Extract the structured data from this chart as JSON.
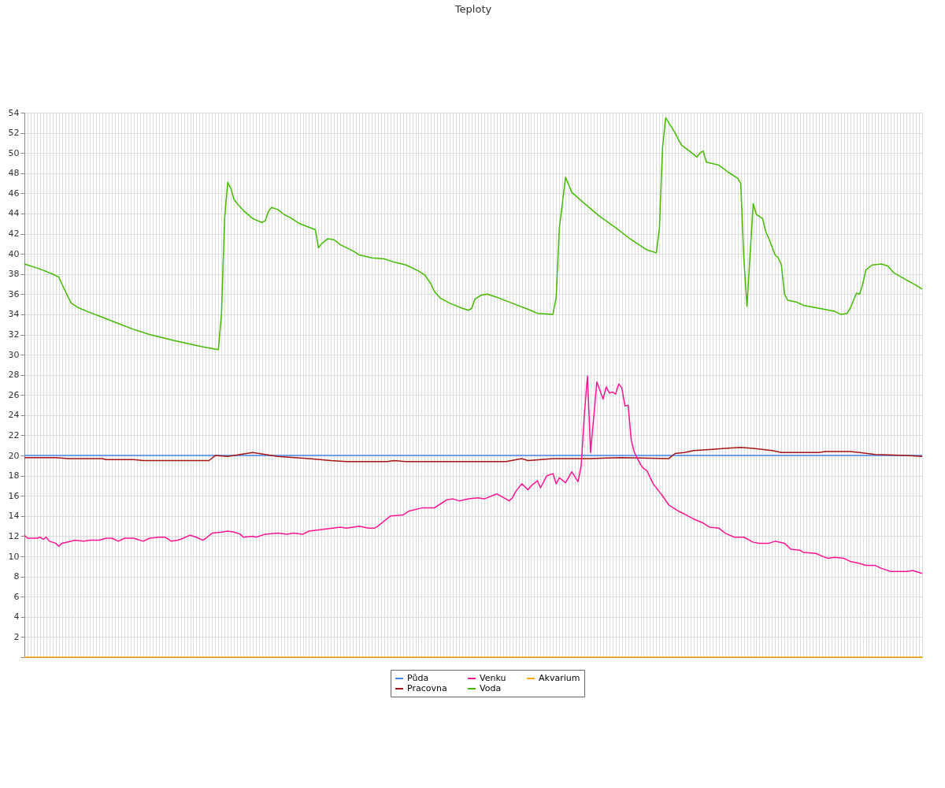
{
  "chart_data": {
    "type": "line",
    "title": "Teploty",
    "ylim": [
      0,
      54
    ],
    "yticks": [
      {
        "value": 0,
        "label": null
      },
      2,
      4,
      6,
      8,
      10,
      12,
      14,
      16,
      18,
      20,
      22,
      24,
      26,
      28,
      30,
      32,
      34,
      36,
      38,
      40,
      42,
      44,
      46,
      48,
      50,
      52,
      54
    ],
    "tick_labels": "y",
    "grid": true,
    "legend": "bottom",
    "marker": "none",
    "line_style": "solid",
    "categories": [
      null,
      null,
      null,
      null,
      null,
      null,
      null,
      null,
      null,
      null,
      null,
      null,
      null,
      null,
      null,
      null,
      null,
      null,
      null,
      null,
      null,
      null,
      null,
      null,
      null,
      null,
      null,
      null,
      null,
      null,
      null,
      null,
      null,
      null,
      null,
      null,
      null,
      null,
      null,
      null,
      null,
      null,
      null,
      null,
      null,
      null,
      null,
      null,
      null,
      null,
      null,
      null,
      null,
      null,
      null,
      null,
      null,
      null,
      null,
      null,
      null,
      null,
      null,
      null,
      null,
      null,
      null,
      null,
      null,
      null,
      null,
      null,
      null,
      null,
      null,
      null,
      null,
      null,
      null,
      null,
      null,
      null,
      null,
      null,
      null,
      null,
      null,
      null,
      null,
      null,
      null,
      null,
      null,
      null,
      null,
      null,
      null,
      null,
      null,
      null,
      null,
      null,
      null,
      null,
      null,
      null,
      null,
      null,
      null,
      null,
      null,
      null,
      null,
      null,
      null,
      null,
      null,
      null,
      null,
      null,
      null,
      null,
      null,
      null,
      null,
      null,
      null,
      null,
      null,
      null,
      null,
      null,
      null,
      null,
      null,
      null,
      null,
      null,
      null,
      null,
      null,
      null,
      null,
      null,
      null,
      null,
      null,
      null,
      null,
      null,
      null,
      null,
      null,
      null,
      null,
      null,
      null,
      null,
      null,
      null,
      null,
      null,
      null,
      null,
      null,
      null,
      null,
      null,
      null,
      null,
      null,
      null,
      null,
      null,
      null,
      null,
      null,
      null,
      null,
      null,
      null,
      null,
      null,
      null,
      null,
      null,
      null,
      null,
      null,
      null,
      null,
      null,
      null,
      null,
      null,
      null,
      null,
      null,
      null,
      null,
      null,
      null,
      null,
      null,
      null,
      null,
      null,
      null,
      null,
      null,
      null,
      null,
      null,
      null,
      null,
      null,
      null,
      null,
      null,
      null,
      null,
      null,
      null,
      null,
      null,
      null,
      null,
      null,
      null,
      null,
      null,
      null,
      null,
      null,
      null,
      null,
      null,
      null,
      null,
      null,
      null,
      null,
      null,
      null,
      null,
      null,
      null,
      null,
      null,
      null,
      null,
      null,
      null,
      null,
      null,
      null,
      null,
      null,
      null,
      null,
      null,
      null,
      null,
      null,
      null,
      null,
      null,
      null,
      null,
      null,
      null,
      null,
      null,
      null,
      null,
      null,
      null,
      null,
      null,
      null,
      null,
      null,
      null,
      null,
      null,
      null,
      null,
      null
    ],
    "series": [
      {
        "name": "Půda",
        "color": "#4a86e8",
        "values": [
          20,
          null,
          null,
          null,
          null,
          null,
          null,
          null,
          null,
          null,
          null,
          null,
          null,
          null,
          null,
          null,
          null,
          null,
          null,
          null,
          null,
          null,
          null,
          null,
          null,
          null,
          null,
          null,
          null,
          null,
          null,
          null,
          null,
          null,
          null,
          null,
          null,
          null,
          null,
          null,
          null,
          null,
          null,
          null,
          null,
          null,
          null,
          null,
          null,
          null,
          null,
          null,
          null,
          null,
          null,
          null,
          null,
          null,
          null,
          null,
          null,
          null,
          null,
          null,
          null,
          null,
          null,
          null,
          null,
          null,
          null,
          null,
          null,
          null,
          null,
          null,
          null,
          null,
          null,
          null,
          null,
          null,
          null,
          null,
          null,
          null,
          null,
          null,
          null,
          null,
          null,
          null,
          null,
          null,
          null,
          null,
          null,
          null,
          null,
          null,
          null,
          null,
          null,
          null,
          null,
          null,
          null,
          null,
          null,
          null,
          null,
          null,
          null,
          null,
          null,
          null,
          null,
          null,
          null,
          null,
          null,
          null,
          null,
          null,
          null,
          null,
          null,
          null,
          null,
          null,
          null,
          null,
          null,
          null,
          null,
          null,
          null,
          null,
          null,
          null,
          null,
          null,
          null,
          null,
          null,
          null,
          null,
          null,
          null,
          null,
          null,
          null,
          null,
          null,
          null,
          null,
          null,
          null,
          null,
          null,
          null,
          null,
          null,
          null,
          null,
          null,
          null,
          null,
          null,
          null,
          null,
          null,
          null,
          null,
          null,
          null,
          null,
          null,
          null,
          null,
          null,
          null,
          null,
          null,
          null,
          null,
          null,
          null,
          null,
          null,
          null,
          null,
          null,
          null,
          null,
          null,
          null,
          null,
          null,
          null,
          null,
          null,
          null,
          null,
          null,
          null,
          null,
          null,
          null,
          null,
          null,
          null,
          null,
          null,
          null,
          null,
          null,
          null,
          null,
          null,
          null,
          null,
          null,
          null,
          null,
          null,
          null,
          null,
          null,
          null,
          null,
          null,
          null,
          null,
          null,
          null,
          null,
          null,
          null,
          null,
          null,
          null,
          null,
          null,
          null,
          null,
          null,
          null,
          null,
          null,
          null,
          null,
          null,
          null,
          null,
          null,
          null,
          null,
          null,
          null,
          null,
          null,
          null,
          null,
          null,
          null,
          null,
          null,
          null,
          null,
          null,
          null,
          null,
          null,
          null,
          null,
          null,
          null,
          null,
          null,
          null,
          null,
          null,
          null,
          null,
          null,
          null,
          20
        ]
      },
      {
        "name": "Pracovna",
        "color": "#a51515",
        "values": [
          19.8,
          null,
          null,
          null,
          null,
          null,
          null,
          null,
          null,
          null,
          19.8,
          null,
          null,
          null,
          19.7,
          null,
          null,
          null,
          null,
          null,
          null,
          null,
          null,
          null,
          null,
          19.7,
          19.6,
          null,
          null,
          null,
          null,
          null,
          null,
          null,
          null,
          19.6,
          null,
          null,
          19.5,
          null,
          null,
          null,
          null,
          null,
          null,
          null,
          null,
          null,
          null,
          null,
          19.5,
          null,
          null,
          null,
          null,
          null,
          null,
          null,
          null,
          19.5,
          null,
          20.0,
          null,
          null,
          null,
          19.9,
          null,
          null,
          null,
          20.1,
          null,
          null,
          null,
          20.3,
          null,
          null,
          null,
          20.1,
          null,
          null,
          null,
          19.9,
          null,
          null,
          null,
          null,
          null,
          null,
          null,
          null,
          null,
          19.7,
          null,
          null,
          null,
          null,
          null,
          null,
          19.5,
          null,
          null,
          null,
          null,
          19.4,
          null,
          null,
          null,
          null,
          null,
          null,
          null,
          null,
          null,
          null,
          null,
          null,
          19.4,
          null,
          19.5,
          null,
          null,
          null,
          19.4,
          null,
          null,
          null,
          null,
          null,
          null,
          null,
          null,
          null,
          null,
          null,
          null,
          19.4,
          null,
          null,
          null,
          null,
          null,
          19.4,
          null,
          null,
          null,
          null,
          null,
          null,
          null,
          null,
          null,
          null,
          null,
          null,
          19.4,
          null,
          null,
          null,
          null,
          19.7,
          null,
          19.5,
          null,
          null,
          null,
          null,
          null,
          null,
          null,
          19.7,
          null,
          null,
          null,
          null,
          null,
          null,
          null,
          null,
          null,
          null,
          null,
          19.7,
          null,
          null,
          null,
          null,
          null,
          null,
          null,
          null,
          null,
          19.8,
          null,
          null,
          null,
          null,
          null,
          null,
          null,
          null,
          null,
          null,
          null,
          null,
          null,
          null,
          19.7,
          null,
          20.2,
          null,
          null,
          20.3,
          null,
          null,
          20.5,
          null,
          null,
          null,
          null,
          20.6,
          null,
          null,
          null,
          null,
          20.7,
          null,
          null,
          null,
          null,
          20.8,
          null,
          null,
          null,
          20.7,
          null,
          null,
          null,
          null,
          null,
          20.5,
          null,
          null,
          20.3,
          null,
          null,
          null,
          null,
          null,
          null,
          null,
          null,
          null,
          null,
          null,
          20.3,
          null,
          20.4,
          null,
          null,
          null,
          null,
          null,
          null,
          null,
          20.4,
          null,
          null,
          20.3,
          null,
          null,
          null,
          null,
          20.1,
          null,
          null,
          null,
          null,
          null,
          null,
          null,
          null,
          null,
          20.0,
          null,
          null,
          null,
          null,
          19.9
        ]
      },
      {
        "name": "Venku",
        "color": "#ff1493",
        "values": [
          12.1,
          11.8,
          null,
          null,
          11.8,
          11.9,
          11.7,
          11.9,
          11.5,
          null,
          11.3,
          11.0,
          11.3,
          null,
          null,
          11.5,
          11.6,
          null,
          null,
          11.5,
          null,
          11.6,
          null,
          null,
          11.6,
          null,
          11.8,
          null,
          11.8,
          null,
          11.5,
          null,
          11.8,
          null,
          null,
          11.8,
          null,
          null,
          11.5,
          null,
          11.8,
          null,
          null,
          11.9,
          null,
          11.9,
          null,
          11.5,
          null,
          11.6,
          11.7,
          null,
          null,
          12.1,
          null,
          11.9,
          null,
          11.6,
          11.8,
          null,
          12.3,
          null,
          null,
          12.4,
          null,
          12.5,
          null,
          12.4,
          null,
          12.2,
          11.9,
          null,
          null,
          12.0,
          11.9,
          null,
          null,
          12.2,
          null,
          null,
          null,
          12.3,
          null,
          null,
          12.2,
          null,
          12.3,
          null,
          null,
          12.2,
          null,
          12.5,
          null,
          null,
          null,
          null,
          12.7,
          null,
          null,
          null,
          null,
          12.9,
          null,
          12.8,
          null,
          null,
          null,
          13.0,
          null,
          null,
          12.8,
          null,
          12.8,
          13.0,
          null,
          13.5,
          null,
          14.0,
          null,
          null,
          null,
          14.1,
          null,
          14.5,
          null,
          null,
          null,
          14.8,
          null,
          null,
          null,
          14.8,
          null,
          15.2,
          null,
          15.6,
          null,
          15.7,
          null,
          15.5,
          null,
          null,
          15.7,
          null,
          null,
          15.8,
          null,
          15.7,
          null,
          null,
          null,
          16.2,
          null,
          null,
          null,
          15.5,
          15.8,
          16.4,
          null,
          17.2,
          null,
          16.6,
          17.0,
          null,
          17.5,
          16.8,
          null,
          18.0,
          null,
          18.2,
          17.2,
          17.8,
          null,
          17.3,
          null,
          18.4,
          null,
          17.4,
          19.0,
          24.0,
          27.9,
          20.3,
          null,
          27.3,
          null,
          25.6,
          26.8,
          26.2,
          26.3,
          26.1,
          27.1,
          26.7,
          24.9,
          25.0,
          21.5,
          20.3,
          null,
          19.1,
          18.7,
          18.5,
          null,
          17.2,
          null,
          16.4,
          16.0,
          null,
          15.1,
          null,
          null,
          14.5,
          null,
          14.2,
          null,
          null,
          13.7,
          null,
          null,
          13.3,
          null,
          12.9,
          null,
          null,
          12.8,
          null,
          12.3,
          null,
          null,
          11.9,
          null,
          null,
          11.9,
          null,
          null,
          11.4,
          null,
          11.3,
          null,
          null,
          11.3,
          null,
          11.5,
          null,
          null,
          11.3,
          null,
          10.7,
          null,
          null,
          10.6,
          10.4,
          null,
          null,
          null,
          10.3,
          null,
          null,
          9.9,
          9.8,
          null,
          9.9,
          null,
          null,
          9.8,
          null,
          9.5,
          null,
          null,
          9.3,
          null,
          9.1,
          null,
          null,
          9.1,
          null,
          8.8,
          null,
          null,
          8.5,
          null,
          8.5,
          null,
          null,
          8.5,
          null,
          8.6,
          null,
          null,
          8.3
        ]
      },
      {
        "name": "Voda",
        "color": "#44bb00",
        "values": [
          39.0,
          null,
          null,
          null,
          null,
          38.5,
          null,
          null,
          null,
          38.0,
          null,
          37.7,
          37.0,
          null,
          35.7,
          35.1,
          null,
          34.7,
          null,
          null,
          34.3,
          null,
          null,
          null,
          null,
          33.7,
          null,
          null,
          null,
          null,
          33.1,
          null,
          null,
          null,
          null,
          32.5,
          null,
          null,
          null,
          null,
          32.0,
          null,
          null,
          null,
          null,
          null,
          null,
          null,
          31.4,
          null,
          null,
          null,
          null,
          null,
          null,
          30.9,
          null,
          null,
          null,
          null,
          null,
          null,
          30.5,
          34.0,
          43.5,
          47.1,
          46.5,
          45.4,
          45.0,
          null,
          44.3,
          null,
          null,
          43.5,
          null,
          null,
          43.1,
          43.3,
          44.2,
          44.6,
          null,
          44.4,
          null,
          43.9,
          null,
          43.6,
          null,
          null,
          43.0,
          null,
          null,
          null,
          null,
          42.4,
          40.6,
          41.0,
          null,
          41.5,
          null,
          41.4,
          null,
          40.9,
          null,
          null,
          null,
          40.3,
          null,
          39.9,
          null,
          null,
          null,
          39.6,
          null,
          null,
          null,
          39.5,
          null,
          null,
          39.2,
          null,
          null,
          null,
          38.9,
          null,
          null,
          null,
          38.3,
          null,
          37.9,
          null,
          37.0,
          36.3,
          null,
          35.6,
          null,
          null,
          35.1,
          null,
          null,
          null,
          34.6,
          null,
          34.4,
          34.6,
          35.5,
          null,
          35.9,
          null,
          36.0,
          null,
          null,
          35.7,
          null,
          null,
          null,
          null,
          35.1,
          null,
          null,
          null,
          null,
          34.5,
          null,
          null,
          34.1,
          null,
          null,
          null,
          null,
          34.0,
          35.7,
          42.5,
          null,
          47.6,
          null,
          46.1,
          null,
          null,
          null,
          45.0,
          null,
          null,
          null,
          null,
          43.7,
          null,
          null,
          null,
          null,
          42.6,
          null,
          null,
          null,
          null,
          41.4,
          null,
          null,
          null,
          null,
          40.4,
          null,
          null,
          40.1,
          42.5,
          50.5,
          53.5,
          null,
          null,
          52.0,
          null,
          50.8,
          null,
          null,
          50.1,
          null,
          49.6,
          50.0,
          50.2,
          49.1,
          null,
          null,
          null,
          48.8,
          null,
          null,
          48.1,
          null,
          null,
          47.5,
          47.0,
          39.5,
          34.8,
          40.0,
          45.0,
          43.9,
          null,
          43.5,
          42.2,
          41.5,
          null,
          39.9,
          39.6,
          38.9,
          36.0,
          35.4,
          null,
          null,
          35.2,
          null,
          34.9,
          null,
          null,
          null,
          null,
          34.6,
          null,
          null,
          null,
          null,
          34.3,
          null,
          34.0,
          null,
          34.1,
          34.6,
          null,
          36.1,
          36.0,
          37.0,
          38.4,
          null,
          38.9,
          null,
          null,
          39.0,
          null,
          38.8,
          null,
          38.1,
          null,
          null,
          null,
          37.4,
          null,
          null,
          36.9,
          null,
          36.5
        ]
      },
      {
        "name": "Akvarium",
        "color": "#ffa500",
        "values": [
          0,
          null,
          null,
          null,
          null,
          null,
          null,
          null,
          null,
          null,
          null,
          null,
          null,
          null,
          null,
          null,
          null,
          null,
          null,
          null,
          null,
          null,
          null,
          null,
          null,
          null,
          null,
          null,
          null,
          null,
          null,
          null,
          null,
          null,
          null,
          null,
          null,
          null,
          null,
          null,
          null,
          null,
          null,
          null,
          null,
          null,
          null,
          null,
          null,
          null,
          null,
          null,
          null,
          null,
          null,
          null,
          null,
          null,
          null,
          null,
          null,
          null,
          null,
          null,
          null,
          null,
          null,
          null,
          null,
          null,
          null,
          null,
          null,
          null,
          null,
          null,
          null,
          null,
          null,
          null,
          null,
          null,
          null,
          null,
          null,
          null,
          null,
          null,
          null,
          null,
          null,
          null,
          null,
          null,
          null,
          null,
          null,
          null,
          null,
          null,
          null,
          null,
          null,
          null,
          null,
          null,
          null,
          null,
          null,
          null,
          null,
          null,
          null,
          null,
          null,
          null,
          null,
          null,
          null,
          null,
          null,
          null,
          null,
          null,
          null,
          null,
          null,
          null,
          null,
          null,
          null,
          null,
          null,
          null,
          null,
          null,
          null,
          null,
          null,
          null,
          null,
          null,
          null,
          null,
          null,
          null,
          null,
          null,
          null,
          null,
          null,
          null,
          null,
          null,
          null,
          null,
          null,
          null,
          null,
          null,
          null,
          null,
          null,
          null,
          null,
          null,
          null,
          null,
          null,
          null,
          null,
          null,
          null,
          null,
          null,
          null,
          null,
          null,
          null,
          null,
          null,
          null,
          null,
          null,
          null,
          null,
          null,
          null,
          null,
          null,
          null,
          null,
          null,
          null,
          null,
          null,
          null,
          null,
          null,
          null,
          null,
          null,
          null,
          null,
          null,
          null,
          null,
          null,
          null,
          null,
          null,
          null,
          null,
          null,
          null,
          null,
          null,
          null,
          null,
          null,
          null,
          null,
          null,
          null,
          null,
          null,
          null,
          null,
          null,
          null,
          null,
          null,
          null,
          null,
          null,
          null,
          null,
          null,
          null,
          null,
          null,
          null,
          null,
          null,
          null,
          null,
          null,
          null,
          null,
          null,
          null,
          null,
          null,
          null,
          null,
          null,
          null,
          null,
          null,
          null,
          null,
          null,
          null,
          null,
          null,
          null,
          null,
          null,
          null,
          null,
          null,
          null,
          null,
          null,
          null,
          null,
          null,
          null,
          null,
          null,
          null,
          null,
          null,
          null,
          null,
          null,
          null,
          0
        ]
      }
    ]
  }
}
